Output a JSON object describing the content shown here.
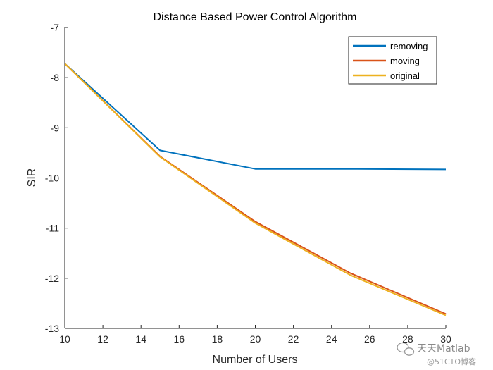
{
  "chart_data": {
    "type": "line",
    "title": "Distance Based Power Control Algorithm",
    "xlabel": "Number of Users",
    "ylabel": "SIR",
    "xlim": [
      10,
      30
    ],
    "ylim": [
      -13,
      -7
    ],
    "xticks": [
      10,
      12,
      14,
      16,
      18,
      20,
      22,
      24,
      26,
      28,
      30
    ],
    "yticks": [
      -13,
      -12,
      -11,
      -10,
      -9,
      -8,
      -7
    ],
    "grid": false,
    "legend_position": "top-right",
    "x": [
      10,
      15,
      20,
      25,
      30
    ],
    "series": [
      {
        "name": "removing",
        "color": "#0072BD",
        "values": [
          -7.72,
          -9.45,
          -9.82,
          -9.82,
          -9.83
        ]
      },
      {
        "name": "moving",
        "color": "#D95319",
        "values": [
          -7.72,
          -9.57,
          -10.87,
          -11.9,
          -12.71
        ]
      },
      {
        "name": "original",
        "color": "#EDB120",
        "values": [
          -7.72,
          -9.58,
          -10.9,
          -11.94,
          -12.74
        ]
      }
    ]
  },
  "watermark": {
    "text": "天天Matlab",
    "subtext": "@51CTO博客",
    "icon": "wechat-icon"
  }
}
